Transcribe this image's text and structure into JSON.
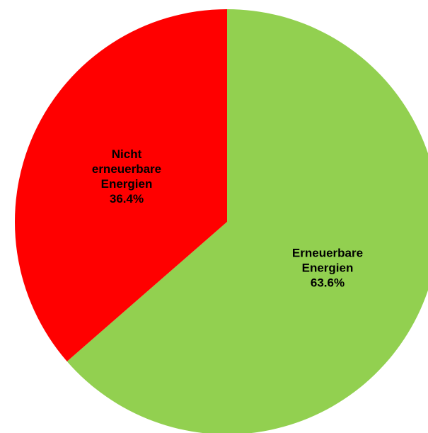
{
  "chart_data": {
    "type": "pie",
    "title": "",
    "legend": "none",
    "start_angle": "top",
    "direction": "clockwise",
    "slices": [
      {
        "label_lines": [
          "Erneuerbare",
          "Energien"
        ],
        "value_label": "63.6%",
        "value": 63.6,
        "color": "#92d050"
      },
      {
        "label_lines": [
          "Nicht",
          "erneuerbare",
          "Energien"
        ],
        "value_label": "36.4%",
        "value": 36.4,
        "color": "#ff0000"
      }
    ]
  }
}
